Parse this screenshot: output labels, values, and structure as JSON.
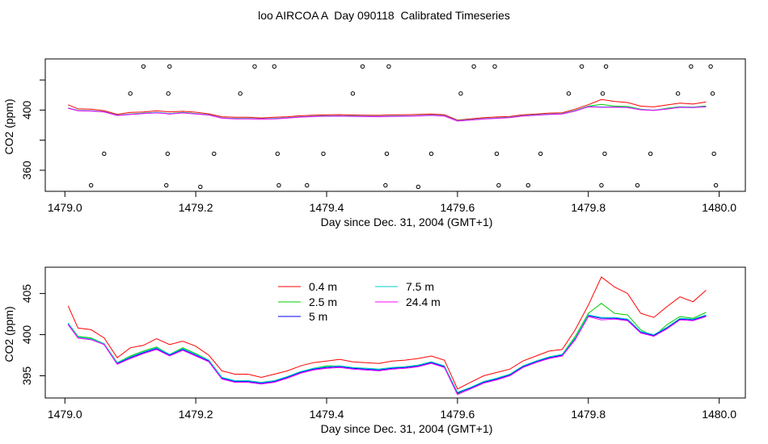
{
  "title": "loo AIRCOA A  Day 090118  Calibrated Timeseries",
  "colors": {
    "0.4 m": "#ff0000",
    "2.5 m": "#00cc00",
    "5 m": "#0000ff",
    "7.5 m": "#00cccc",
    "24.4 m": "#ff00ff"
  },
  "chart_data": [
    {
      "type": "line",
      "xlabel": "Day since Dec. 31, 2004 (GMT+1)",
      "ylabel": "CO2 (ppm)",
      "xlim": [
        1478.97,
        1480.04
      ],
      "ylim": [
        346,
        434
      ],
      "x_ticks": [
        1479.0,
        1479.2,
        1479.4,
        1479.6,
        1479.8,
        1480.0
      ],
      "x_tick_labels": [
        "1479.0",
        "1479.2",
        "1479.4",
        "1479.6",
        "1479.8",
        "1480.0"
      ],
      "y_ticks": [
        360,
        380,
        400,
        420
      ],
      "y_tick_labels": [
        "360",
        "",
        "400",
        ""
      ],
      "series_x": [
        1479.005,
        1479.02,
        1479.04,
        1479.06,
        1479.08,
        1479.1,
        1479.12,
        1479.14,
        1479.16,
        1479.18,
        1479.2,
        1479.22,
        1479.24,
        1479.26,
        1479.28,
        1479.3,
        1479.32,
        1479.34,
        1479.36,
        1479.38,
        1479.4,
        1479.42,
        1479.44,
        1479.46,
        1479.48,
        1479.5,
        1479.52,
        1479.54,
        1479.56,
        1479.58,
        1479.6,
        1479.62,
        1479.64,
        1479.66,
        1479.68,
        1479.7,
        1479.72,
        1479.74,
        1479.76,
        1479.78,
        1479.8,
        1479.82,
        1479.84,
        1479.86,
        1479.88,
        1479.9,
        1479.92,
        1479.94,
        1479.96,
        1479.98
      ],
      "series": [
        {
          "name": "0.4 m",
          "values": [
            403.5,
            400.8,
            400.6,
            399.6,
            397.2,
            398.4,
            398.7,
            399.5,
            398.8,
            399.2,
            398.6,
            397.5,
            395.6,
            395.2,
            395.2,
            394.8,
            395.2,
            395.6,
            396.2,
            396.6,
            396.8,
            397.0,
            396.7,
            396.6,
            396.5,
            396.8,
            396.9,
            397.1,
            397.4,
            396.9,
            393.4,
            394.2,
            395.0,
            395.4,
            395.8,
            396.8,
            397.4,
            398.0,
            398.2,
            400.6,
            403.6,
            407.0,
            405.8,
            405.0,
            402.6,
            402.1,
            403.4,
            404.6,
            404.0,
            405.4
          ]
        },
        {
          "name": "2.5 m",
          "values": [
            401.4,
            399.8,
            399.6,
            398.9,
            396.6,
            397.4,
            398.0,
            398.5,
            397.6,
            398.4,
            397.7,
            396.9,
            394.8,
            394.4,
            394.4,
            394.2,
            394.4,
            394.9,
            395.5,
            395.9,
            396.2,
            396.2,
            396.0,
            395.9,
            395.8,
            396.0,
            396.1,
            396.3,
            396.7,
            396.2,
            392.8,
            393.6,
            394.3,
            394.7,
            395.2,
            396.2,
            396.8,
            397.3,
            397.6,
            399.8,
            402.6,
            403.8,
            402.6,
            402.4,
            400.6,
            399.8,
            401.2,
            402.2,
            402.0,
            402.7
          ]
        },
        {
          "name": "5 m",
          "values": [
            401.3,
            399.6,
            399.4,
            398.8,
            396.5,
            397.2,
            397.8,
            398.3,
            397.5,
            398.2,
            397.5,
            396.8,
            394.7,
            394.3,
            394.3,
            394.1,
            394.3,
            394.8,
            395.4,
            395.8,
            396.0,
            396.1,
            395.9,
            395.8,
            395.7,
            395.9,
            396.0,
            396.2,
            396.6,
            396.1,
            392.9,
            393.5,
            394.2,
            394.6,
            395.1,
            396.1,
            396.7,
            397.2,
            397.5,
            399.5,
            402.3,
            402.0,
            402.0,
            401.8,
            400.3,
            399.9,
            400.8,
            401.9,
            401.8,
            402.3
          ]
        },
        {
          "name": "7.5 m",
          "values": [
            401.4,
            399.7,
            399.5,
            398.9,
            396.6,
            397.3,
            397.9,
            398.4,
            397.6,
            398.3,
            397.6,
            396.9,
            394.8,
            394.4,
            394.4,
            394.2,
            394.4,
            394.9,
            395.5,
            395.9,
            396.1,
            396.2,
            396.0,
            395.9,
            395.8,
            396.0,
            396.1,
            396.3,
            396.7,
            396.2,
            393.0,
            393.6,
            394.3,
            394.7,
            395.2,
            396.2,
            396.8,
            397.3,
            397.6,
            399.6,
            402.4,
            402.1,
            402.1,
            401.9,
            400.4,
            400.0,
            400.9,
            402.0,
            401.9,
            402.4
          ]
        },
        {
          "name": "24.4 m",
          "values": [
            401.2,
            399.6,
            399.4,
            398.8,
            396.4,
            397.1,
            397.7,
            398.2,
            397.4,
            398.1,
            397.4,
            396.7,
            394.6,
            394.2,
            394.2,
            394.0,
            394.2,
            394.7,
            395.3,
            395.7,
            395.9,
            396.0,
            395.8,
            395.7,
            395.6,
            395.8,
            395.9,
            396.1,
            396.5,
            396.0,
            392.7,
            393.4,
            394.1,
            394.5,
            395.0,
            396.0,
            396.6,
            397.1,
            397.4,
            399.4,
            402.2,
            401.8,
            401.9,
            401.7,
            400.2,
            399.8,
            400.7,
            401.8,
            401.7,
            402.2
          ]
        }
      ],
      "scatter_points": [
        {
          "x": 1479.04,
          "y": 350
        },
        {
          "x": 1479.06,
          "y": 371
        },
        {
          "x": 1479.1,
          "y": 411
        },
        {
          "x": 1479.12,
          "y": 429
        },
        {
          "x": 1479.155,
          "y": 350
        },
        {
          "x": 1479.157,
          "y": 371
        },
        {
          "x": 1479.158,
          "y": 411
        },
        {
          "x": 1479.16,
          "y": 429
        },
        {
          "x": 1479.207,
          "y": 349
        },
        {
          "x": 1479.228,
          "y": 371
        },
        {
          "x": 1479.268,
          "y": 411
        },
        {
          "x": 1479.29,
          "y": 429
        },
        {
          "x": 1479.32,
          "y": 429
        },
        {
          "x": 1479.325,
          "y": 371
        },
        {
          "x": 1479.327,
          "y": 350
        },
        {
          "x": 1479.37,
          "y": 350
        },
        {
          "x": 1479.395,
          "y": 371
        },
        {
          "x": 1479.44,
          "y": 411
        },
        {
          "x": 1479.455,
          "y": 429
        },
        {
          "x": 1479.49,
          "y": 350
        },
        {
          "x": 1479.492,
          "y": 371
        },
        {
          "x": 1479.495,
          "y": 429
        },
        {
          "x": 1479.54,
          "y": 349
        },
        {
          "x": 1479.56,
          "y": 371
        },
        {
          "x": 1479.605,
          "y": 411
        },
        {
          "x": 1479.625,
          "y": 429
        },
        {
          "x": 1479.657,
          "y": 429
        },
        {
          "x": 1479.66,
          "y": 371
        },
        {
          "x": 1479.663,
          "y": 350
        },
        {
          "x": 1479.708,
          "y": 350
        },
        {
          "x": 1479.727,
          "y": 371
        },
        {
          "x": 1479.77,
          "y": 411
        },
        {
          "x": 1479.79,
          "y": 429
        },
        {
          "x": 1479.82,
          "y": 350
        },
        {
          "x": 1479.822,
          "y": 411
        },
        {
          "x": 1479.825,
          "y": 371
        },
        {
          "x": 1479.827,
          "y": 429
        },
        {
          "x": 1479.875,
          "y": 350
        },
        {
          "x": 1479.895,
          "y": 371
        },
        {
          "x": 1479.937,
          "y": 411
        },
        {
          "x": 1479.957,
          "y": 429
        },
        {
          "x": 1479.987,
          "y": 429
        },
        {
          "x": 1479.99,
          "y": 411
        },
        {
          "x": 1479.992,
          "y": 371
        },
        {
          "x": 1479.995,
          "y": 350
        }
      ]
    },
    {
      "type": "line",
      "xlabel": "Day since Dec. 31, 2004 (GMT+1)",
      "ylabel": "CO2 (ppm)",
      "xlim": [
        1478.97,
        1480.04
      ],
      "ylim": [
        392.3,
        408.2
      ],
      "x_ticks": [
        1479.0,
        1479.2,
        1479.4,
        1479.6,
        1479.8,
        1480.0
      ],
      "x_tick_labels": [
        "1479.0",
        "1479.2",
        "1479.4",
        "1479.6",
        "1479.8",
        "1480.0"
      ],
      "y_ticks": [
        395,
        400,
        405
      ],
      "y_tick_labels": [
        "395",
        "400",
        "405"
      ],
      "legend": {
        "placement": "top-left",
        "entries": [
          "0.4 m",
          "2.5 m",
          "5 m",
          "7.5 m",
          "24.4 m"
        ]
      },
      "series_x": [
        1479.005,
        1479.02,
        1479.04,
        1479.06,
        1479.08,
        1479.1,
        1479.12,
        1479.14,
        1479.16,
        1479.18,
        1479.2,
        1479.22,
        1479.24,
        1479.26,
        1479.28,
        1479.3,
        1479.32,
        1479.34,
        1479.36,
        1479.38,
        1479.4,
        1479.42,
        1479.44,
        1479.46,
        1479.48,
        1479.5,
        1479.52,
        1479.54,
        1479.56,
        1479.58,
        1479.6,
        1479.62,
        1479.64,
        1479.66,
        1479.68,
        1479.7,
        1479.72,
        1479.74,
        1479.76,
        1479.78,
        1479.8,
        1479.82,
        1479.84,
        1479.86,
        1479.88,
        1479.9,
        1479.92,
        1479.94,
        1479.96,
        1479.98
      ],
      "series": [
        {
          "name": "0.4 m",
          "values": [
            403.5,
            400.8,
            400.6,
            399.6,
            397.2,
            398.4,
            398.7,
            399.5,
            398.8,
            399.2,
            398.6,
            397.5,
            395.6,
            395.2,
            395.2,
            394.8,
            395.2,
            395.6,
            396.2,
            396.6,
            396.8,
            397.0,
            396.7,
            396.6,
            396.5,
            396.8,
            396.9,
            397.1,
            397.4,
            396.9,
            393.4,
            394.2,
            395.0,
            395.4,
            395.8,
            396.8,
            397.4,
            398.0,
            398.2,
            400.6,
            403.6,
            407.0,
            405.8,
            405.0,
            402.6,
            402.1,
            403.4,
            404.6,
            404.0,
            405.4
          ]
        },
        {
          "name": "2.5 m",
          "values": [
            401.4,
            399.8,
            399.6,
            398.9,
            396.6,
            397.4,
            398.0,
            398.5,
            397.6,
            398.4,
            397.7,
            396.9,
            394.8,
            394.4,
            394.4,
            394.2,
            394.4,
            394.9,
            395.5,
            395.9,
            396.2,
            396.2,
            396.0,
            395.9,
            395.8,
            396.0,
            396.1,
            396.3,
            396.7,
            396.2,
            392.8,
            393.6,
            394.3,
            394.7,
            395.2,
            396.2,
            396.8,
            397.3,
            397.6,
            399.8,
            402.6,
            403.8,
            402.6,
            402.4,
            400.6,
            399.8,
            401.2,
            402.2,
            402.0,
            402.7
          ]
        },
        {
          "name": "5 m",
          "values": [
            401.3,
            399.6,
            399.4,
            398.8,
            396.5,
            397.2,
            397.8,
            398.3,
            397.5,
            398.2,
            397.5,
            396.8,
            394.7,
            394.3,
            394.3,
            394.1,
            394.3,
            394.8,
            395.4,
            395.8,
            396.0,
            396.1,
            395.9,
            395.8,
            395.7,
            395.9,
            396.0,
            396.2,
            396.6,
            396.1,
            392.9,
            393.5,
            394.2,
            394.6,
            395.1,
            396.1,
            396.7,
            397.2,
            397.5,
            399.5,
            402.3,
            402.0,
            402.0,
            401.8,
            400.3,
            399.9,
            400.8,
            401.9,
            401.8,
            402.3
          ]
        },
        {
          "name": "7.5 m",
          "values": [
            401.4,
            399.7,
            399.5,
            398.9,
            396.6,
            397.3,
            397.9,
            398.4,
            397.6,
            398.3,
            397.6,
            396.9,
            394.8,
            394.4,
            394.4,
            394.2,
            394.4,
            394.9,
            395.5,
            395.9,
            396.1,
            396.2,
            396.0,
            395.9,
            395.8,
            396.0,
            396.1,
            396.3,
            396.7,
            396.2,
            393.0,
            393.6,
            394.3,
            394.7,
            395.2,
            396.2,
            396.8,
            397.3,
            397.6,
            399.6,
            402.4,
            402.1,
            402.1,
            401.9,
            400.4,
            400.0,
            400.9,
            402.0,
            401.9,
            402.4
          ]
        },
        {
          "name": "24.4 m",
          "values": [
            401.2,
            399.6,
            399.4,
            398.8,
            396.4,
            397.1,
            397.7,
            398.2,
            397.4,
            398.1,
            397.4,
            396.7,
            394.6,
            394.2,
            394.2,
            394.0,
            394.2,
            394.7,
            395.3,
            395.7,
            395.9,
            396.0,
            395.8,
            395.7,
            395.6,
            395.8,
            395.9,
            396.1,
            396.5,
            396.0,
            392.7,
            393.4,
            394.1,
            394.5,
            395.0,
            396.0,
            396.6,
            397.1,
            397.4,
            399.4,
            402.2,
            401.8,
            401.9,
            401.7,
            400.2,
            399.8,
            400.7,
            401.8,
            401.7,
            402.2
          ]
        }
      ]
    }
  ]
}
